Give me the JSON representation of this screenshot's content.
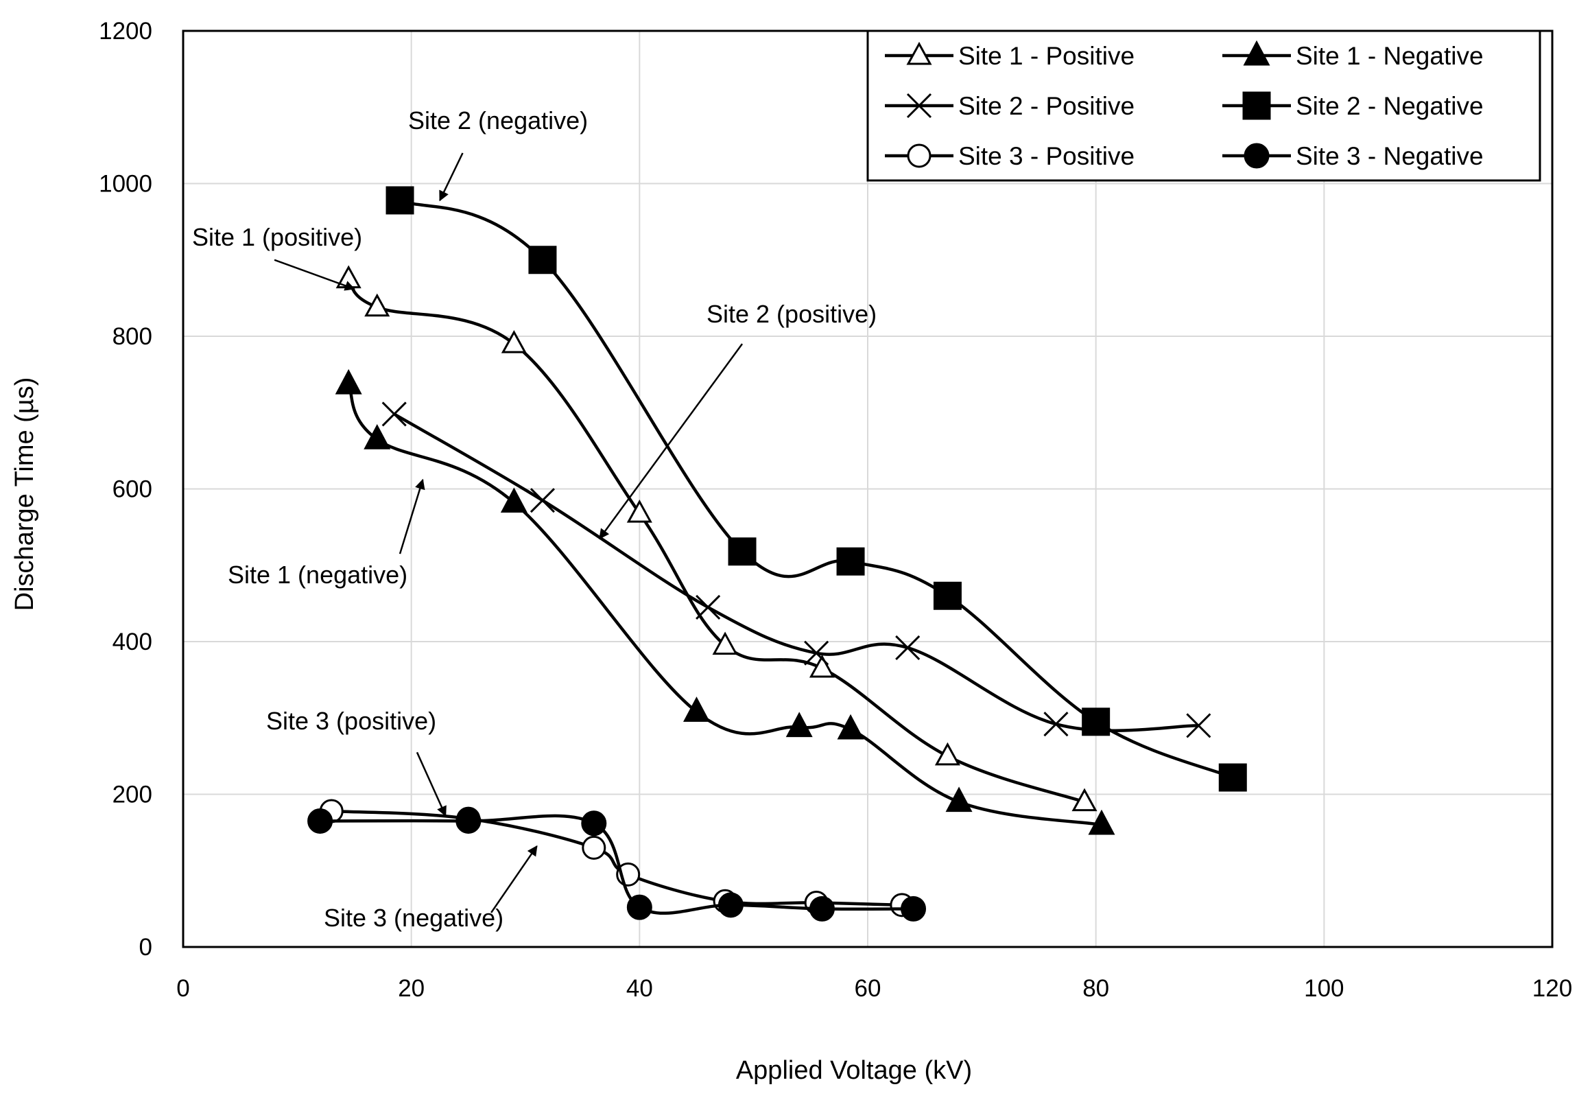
{
  "chart_data": {
    "type": "scatter",
    "title": "",
    "xlabel": "Applied Voltage (kV)",
    "ylabel": "Discharge Time (µs)",
    "xlim": [
      0,
      120
    ],
    "ylim": [
      0,
      1200
    ],
    "x_ticks": [
      "0",
      "20",
      "40",
      "60",
      "80",
      "100",
      "120"
    ],
    "y_ticks": [
      "0",
      "200",
      "400",
      "600",
      "800",
      "1000",
      "1200"
    ],
    "grid": true,
    "legend_position": "top-right",
    "series": [
      {
        "name": "Site 1 - Positive",
        "marker": "triangle-open",
        "x": [
          14.5,
          17,
          29,
          40,
          47.5,
          56,
          67,
          79
        ],
        "y": [
          875,
          838,
          790,
          568,
          395,
          365,
          250,
          190
        ]
      },
      {
        "name": "Site 1 - Negative",
        "marker": "triangle-filled",
        "x": [
          14.5,
          17,
          29,
          45,
          54,
          58.5,
          68,
          80.5
        ],
        "y": [
          737,
          665,
          582,
          308,
          288,
          285,
          190,
          160
        ]
      },
      {
        "name": "Site 2 - Positive",
        "marker": "x",
        "x": [
          18.5,
          31.5,
          46,
          55.5,
          63.5,
          76.5,
          89
        ],
        "y": [
          698,
          585,
          445,
          385,
          392,
          292,
          290
        ]
      },
      {
        "name": "Site 2 - Negative",
        "marker": "square-filled",
        "x": [
          19,
          31.5,
          49,
          58.5,
          67,
          80,
          92
        ],
        "y": [
          978,
          900,
          518,
          505,
          460,
          295,
          222
        ]
      },
      {
        "name": "Site 3 - Positive",
        "marker": "circle-open",
        "x": [
          13,
          25,
          36,
          39,
          47.5,
          55.5,
          63
        ],
        "y": [
          178,
          168,
          130,
          95,
          60,
          58,
          55
        ]
      },
      {
        "name": "Site 3 - Negative",
        "marker": "circle-filled",
        "x": [
          12,
          25,
          36,
          40,
          48,
          56,
          64
        ],
        "y": [
          165,
          165,
          162,
          52,
          55,
          50,
          50
        ]
      }
    ],
    "annotations": [
      {
        "text": "Site 2 (negative)",
        "arrow_from": [
          24.5,
          1040
        ],
        "arrow_to": [
          22.5,
          978
        ]
      },
      {
        "text": "Site 1 (positive)",
        "arrow_from": [
          8,
          900
        ],
        "arrow_to": [
          15,
          862
        ]
      },
      {
        "text": "Site 2 (positive)",
        "arrow_from": [
          49,
          790
        ],
        "arrow_to": [
          36.5,
          535
        ]
      },
      {
        "text": "Site 1 (negative)",
        "arrow_from": [
          19,
          515
        ],
        "arrow_to": [
          21,
          612
        ]
      },
      {
        "text": "Site 3 (positive)",
        "arrow_from": [
          20.5,
          255
        ],
        "arrow_to": [
          23,
          172
        ]
      },
      {
        "text": "Site 3 (negative)",
        "arrow_from": [
          27,
          45
        ],
        "arrow_to": [
          31,
          132
        ]
      }
    ]
  }
}
